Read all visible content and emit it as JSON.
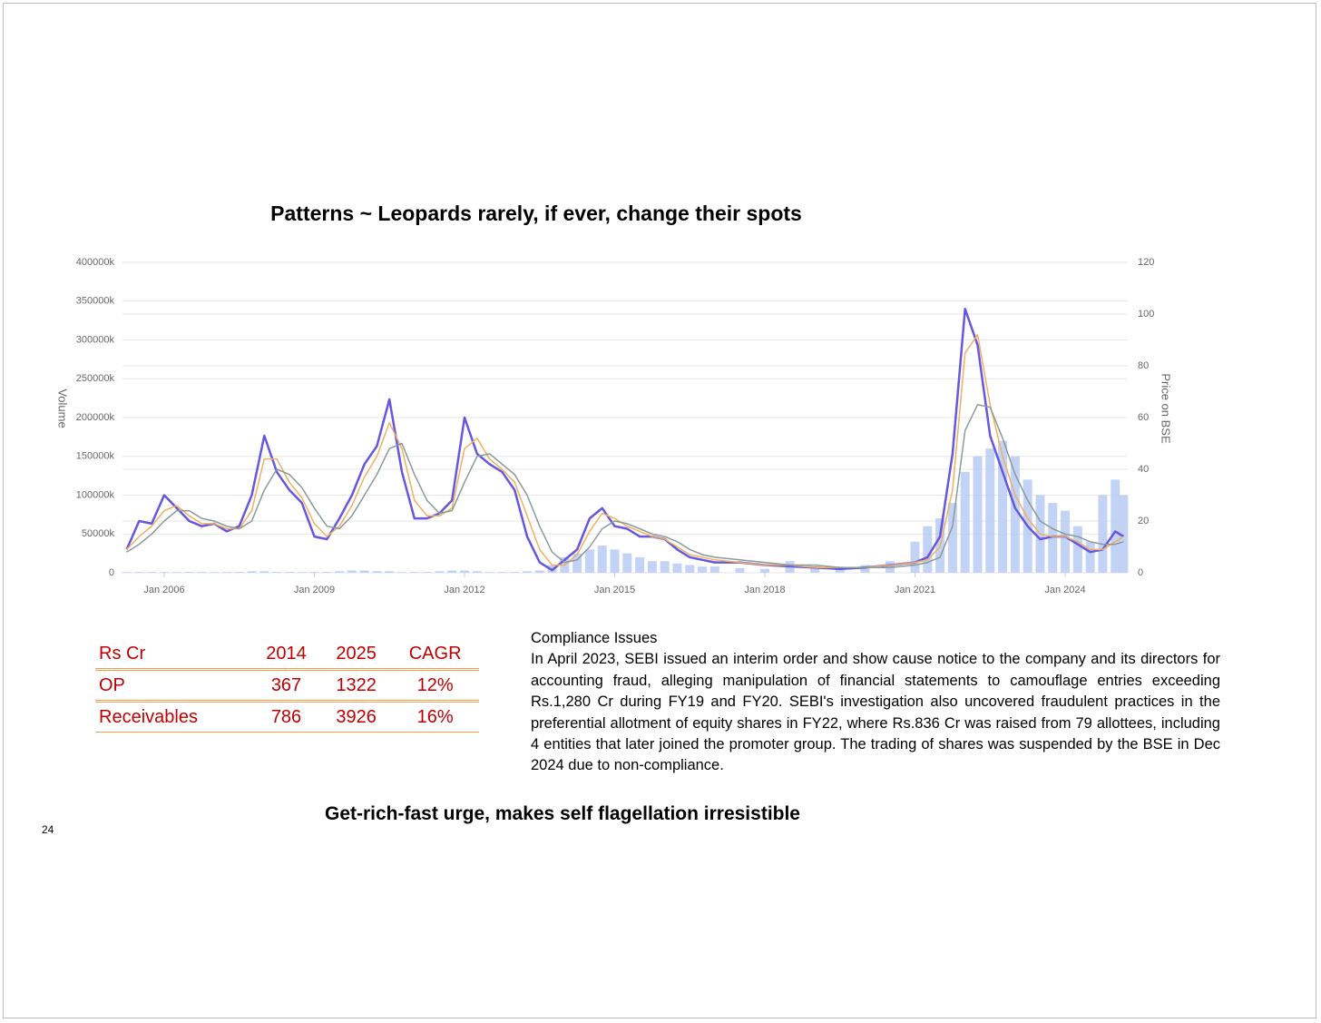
{
  "title": "Patterns ~ Leopards rarely, if ever, change their spots",
  "chart_data": {
    "type": "combo",
    "ylabel": "Volume",
    "y2label": "Price on BSE",
    "x": [
      "2005-04",
      "2005-07",
      "2005-10",
      "2006-01",
      "2006-04",
      "2006-07",
      "2006-10",
      "2007-01",
      "2007-04",
      "2007-07",
      "2007-10",
      "2008-01",
      "2008-04",
      "2008-07",
      "2008-10",
      "2009-01",
      "2009-04",
      "2009-07",
      "2009-10",
      "2010-01",
      "2010-04",
      "2010-07",
      "2010-10",
      "2011-01",
      "2011-04",
      "2011-07",
      "2011-10",
      "2012-01",
      "2012-04",
      "2012-07",
      "2012-10",
      "2013-01",
      "2013-04",
      "2013-07",
      "2013-10",
      "2014-01",
      "2014-04",
      "2014-07",
      "2014-10",
      "2015-01",
      "2015-04",
      "2015-07",
      "2015-10",
      "2016-01",
      "2016-04",
      "2016-07",
      "2016-10",
      "2017-01",
      "2017-07",
      "2018-01",
      "2018-07",
      "2019-01",
      "2019-07",
      "2020-01",
      "2020-07",
      "2021-01",
      "2021-04",
      "2021-07",
      "2021-10",
      "2022-01",
      "2022-04",
      "2022-07",
      "2022-10",
      "2023-01",
      "2023-04",
      "2023-07",
      "2023-10",
      "2024-01",
      "2024-04",
      "2024-07",
      "2024-10",
      "2025-01",
      "2025-03"
    ],
    "series": [
      {
        "type": "bar",
        "axis": "y",
        "color": "#b8cbf5",
        "values": [
          1000000,
          1000000,
          1000000,
          1000000,
          1000000,
          1000000,
          1000000,
          1000000,
          1000000,
          1000000,
          2000000,
          2000000,
          1000000,
          1000000,
          1000000,
          1000000,
          1000000,
          2000000,
          3000000,
          3000000,
          2000000,
          2000000,
          1000000,
          1000000,
          1000000,
          2000000,
          3000000,
          3000000,
          2000000,
          1000000,
          1000000,
          1000000,
          2000000,
          3000000,
          10000000,
          20000000,
          25000000,
          30000000,
          35000000,
          30000000,
          25000000,
          20000000,
          15000000,
          15000000,
          12000000,
          10000000,
          8000000,
          8000000,
          6000000,
          5000000,
          15000000,
          6000000,
          8000000,
          10000000,
          15000000,
          40000000,
          60000000,
          70000000,
          90000000,
          130000000,
          150000000,
          160000000,
          170000000,
          150000000,
          120000000,
          100000000,
          90000000,
          80000000,
          60000000,
          40000000,
          100000000,
          120000000,
          100000000
        ]
      },
      {
        "type": "line",
        "axis": "y2",
        "color": "#6656e0",
        "width": 2.5,
        "values": [
          9,
          20,
          19,
          30,
          25,
          20,
          18,
          19,
          16,
          18,
          30,
          53,
          39,
          32,
          27,
          14,
          13,
          21,
          30,
          42,
          49,
          67,
          39,
          21,
          21,
          23,
          28,
          60,
          46,
          42,
          39,
          32,
          14,
          4,
          1,
          5,
          9,
          21,
          25,
          18,
          17,
          14,
          14,
          13,
          9,
          6,
          5,
          4,
          4,
          3,
          2.5,
          2,
          1.5,
          2,
          3,
          4,
          6,
          14,
          46,
          102,
          88,
          53,
          39,
          25,
          18,
          13,
          14,
          14,
          11,
          8,
          9,
          16,
          14
        ]
      },
      {
        "type": "line",
        "axis": "y2",
        "color": "#f0b060",
        "width": 1.5,
        "values": [
          9,
          14,
          18,
          24,
          26,
          22,
          19,
          19,
          17,
          17,
          24,
          44,
          44,
          35,
          29,
          19,
          14,
          18,
          26,
          37,
          45,
          58,
          48,
          28,
          22,
          22,
          25,
          48,
          52,
          44,
          40,
          35,
          22,
          9,
          3,
          3,
          7,
          16,
          23,
          21,
          18,
          16,
          14,
          13,
          10,
          7,
          6,
          5,
          4,
          3,
          3,
          2,
          2,
          2,
          3,
          4,
          5,
          10,
          32,
          85,
          92,
          65,
          45,
          30,
          21,
          15,
          14,
          14,
          12,
          9,
          9,
          12,
          14
        ]
      },
      {
        "type": "line",
        "axis": "y2",
        "color": "#8a9a98",
        "width": 1.5,
        "values": [
          8,
          11,
          15,
          20,
          24,
          24,
          21,
          20,
          18,
          17,
          20,
          32,
          40,
          38,
          33,
          25,
          18,
          17,
          22,
          30,
          38,
          48,
          50,
          38,
          28,
          23,
          24,
          35,
          45,
          46,
          42,
          38,
          30,
          18,
          8,
          4,
          5,
          10,
          17,
          20,
          19,
          17,
          15,
          14,
          12,
          9,
          7,
          6,
          5,
          4,
          3,
          3,
          2,
          2,
          2,
          3,
          4,
          6,
          18,
          55,
          65,
          64,
          52,
          38,
          28,
          20,
          17,
          15,
          14,
          12,
          11,
          11,
          12
        ]
      }
    ],
    "xlim": [
      "2005-03",
      "2025-04"
    ],
    "xticks": [
      {
        "value": "2006-01",
        "label": "Jan 2006"
      },
      {
        "value": "2009-01",
        "label": "Jan 2009"
      },
      {
        "value": "2012-01",
        "label": "Jan 2012"
      },
      {
        "value": "2015-01",
        "label": "Jan 2015"
      },
      {
        "value": "2018-01",
        "label": "Jan 2018"
      },
      {
        "value": "2021-01",
        "label": "Jan 2021"
      },
      {
        "value": "2024-01",
        "label": "Jan 2024"
      }
    ],
    "ylim": [
      0,
      400000000
    ],
    "yticks": [
      0,
      {
        "value": 50000000,
        "label": "50000k"
      },
      {
        "value": 100000000,
        "label": "100000k"
      },
      {
        "value": 150000000,
        "label": "150000k"
      },
      {
        "value": 200000000,
        "label": "200000k"
      },
      {
        "value": 250000000,
        "label": "250000k"
      },
      {
        "value": 300000000,
        "label": "300000k"
      },
      {
        "value": 350000000,
        "label": "350000k"
      },
      {
        "value": 400000000,
        "label": "400000k"
      }
    ],
    "y2lim": [
      0,
      120
    ],
    "y2ticks": [
      0,
      20,
      40,
      60,
      80,
      100,
      120
    ],
    "grid": true
  },
  "table": {
    "header": [
      "Rs Cr",
      "2014",
      "2025",
      "CAGR"
    ],
    "rows": [
      [
        "OP",
        "367",
        "1322",
        "12%"
      ],
      [
        "Receivables",
        "786",
        "3926",
        "16%"
      ]
    ]
  },
  "compliance": {
    "heading": "Compliance Issues",
    "body": "In April 2023, SEBI issued an interim order and show cause notice to the company and its directors for accounting fraud, alleging manipulation of financial statements to camouflage entries exceeding Rs.1,280 Cr during FY19 and FY20. SEBI's investigation also uncovered fraudulent practices in the preferential allotment of equity shares in FY22, where Rs.836 Cr was raised from 79 allottees, including 4 entities that later joined the promoter group. The trading of shares was suspended by the BSE in Dec 2024 due to non-compliance."
  },
  "footer": "Get-rich-fast urge, makes self flagellation irresistible",
  "page_number": "24"
}
